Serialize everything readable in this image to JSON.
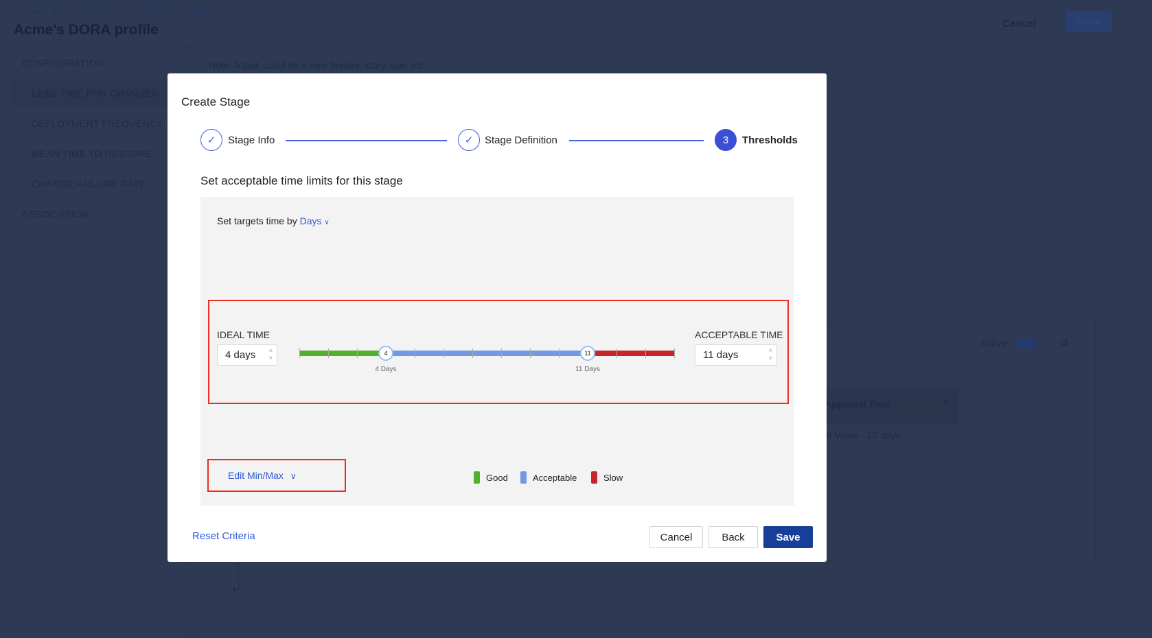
{
  "background": {
    "breadcrumb": [
      "Account: SEI-Internal-Prod2",
      "Workflow Profiles"
    ],
    "page_title": "Acme's DORA profile",
    "header_cancel": "Cancel",
    "header_save": "Save",
    "sidebar": {
      "section1": "CONFIGURATION",
      "items": [
        "LEAD TIME FOR CHANGES",
        "DEPLOYMENT FREQUENCY",
        "MEAN TIME TO RESTORE",
        "CHANGE FAILURE RATE"
      ],
      "section2": "ASSOCIATION"
    },
    "note": "Note: A task could be a new feature, story, epic etc.",
    "active_label": "Active",
    "card_title": "Approval Time",
    "card_value": "et Value - 10 days"
  },
  "modal": {
    "title": "Create Stage",
    "steps": [
      {
        "label": "Stage Info",
        "state": "done"
      },
      {
        "label": "Stage Definition",
        "state": "done"
      },
      {
        "label": "Thresholds",
        "state": "active",
        "number": "3"
      }
    ],
    "subtitle": "Set acceptable time limits for this stage",
    "targets_prefix": "Set targets time by",
    "targets_unit": "Days",
    "ideal_label": "IDEAL TIME",
    "ideal_value": "4 days",
    "acceptable_label": "ACCEPTABLE TIME",
    "acceptable_value": "11 days",
    "slider": {
      "min": 1,
      "max": 14,
      "ideal": 4,
      "acceptable": 11,
      "ideal_handle": "4",
      "acceptable_handle": "11",
      "ideal_caption": "4 Days",
      "acceptable_caption": "11 Days",
      "colors": {
        "good": "#52b12a",
        "acceptable": "#7598e2",
        "slow": "#c6252a"
      }
    },
    "edit_minmax": "Edit Min/Max",
    "legend": [
      "Good",
      "Acceptable",
      "Slow"
    ],
    "reset": "Reset Criteria",
    "cancel": "Cancel",
    "back": "Back",
    "save": "Save"
  }
}
